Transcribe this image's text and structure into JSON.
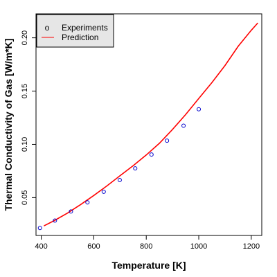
{
  "chart_data": {
    "type": "scatter",
    "title": "",
    "xlabel": "Temperature [K]",
    "ylabel": "Thermal Conductivity of Gas [W/m*K]",
    "xlim": [
      380,
      1240
    ],
    "ylim": [
      0.0145,
      0.2225
    ],
    "xticks": [
      400,
      600,
      800,
      1000,
      1200
    ],
    "yticks": [
      0.05,
      0.1,
      0.15,
      0.2
    ],
    "xtick_labels": [
      "400",
      "600",
      "800",
      "1000",
      "1200"
    ],
    "ytick_labels": [
      "0.05",
      "0.10",
      "0.15",
      "0.20"
    ],
    "grid": false,
    "legend_position": "top-left",
    "series": [
      {
        "name": "Experiments",
        "kind": "points",
        "marker": "open-circle",
        "color": "#0000cc",
        "x": [
          395,
          452,
          513,
          576,
          638,
          699,
          758,
          820,
          879,
          942,
          1000
        ],
        "y": [
          0.0215,
          0.0285,
          0.037,
          0.0455,
          0.0555,
          0.0665,
          0.0775,
          0.0905,
          0.1035,
          0.1175,
          0.133
        ]
      },
      {
        "name": "Prediction",
        "kind": "line",
        "color": "#ff0000",
        "x": [
          410,
          450,
          500,
          550,
          600,
          650,
          700,
          750,
          800,
          850,
          900,
          950,
          1000,
          1050,
          1100,
          1150,
          1200,
          1225
        ],
        "y": [
          0.0235,
          0.0285,
          0.0355,
          0.0435,
          0.052,
          0.061,
          0.0705,
          0.08,
          0.09,
          0.101,
          0.114,
          0.128,
          0.143,
          0.158,
          0.174,
          0.192,
          0.207,
          0.214
        ]
      }
    ]
  },
  "legend": {
    "experiments_label": "Experiments",
    "prediction_label": "Prediction",
    "experiments_symbol": "o"
  },
  "colors": {
    "points": "#0000cc",
    "line": "#ff0000",
    "legend_bg": "#e6e6e6"
  }
}
